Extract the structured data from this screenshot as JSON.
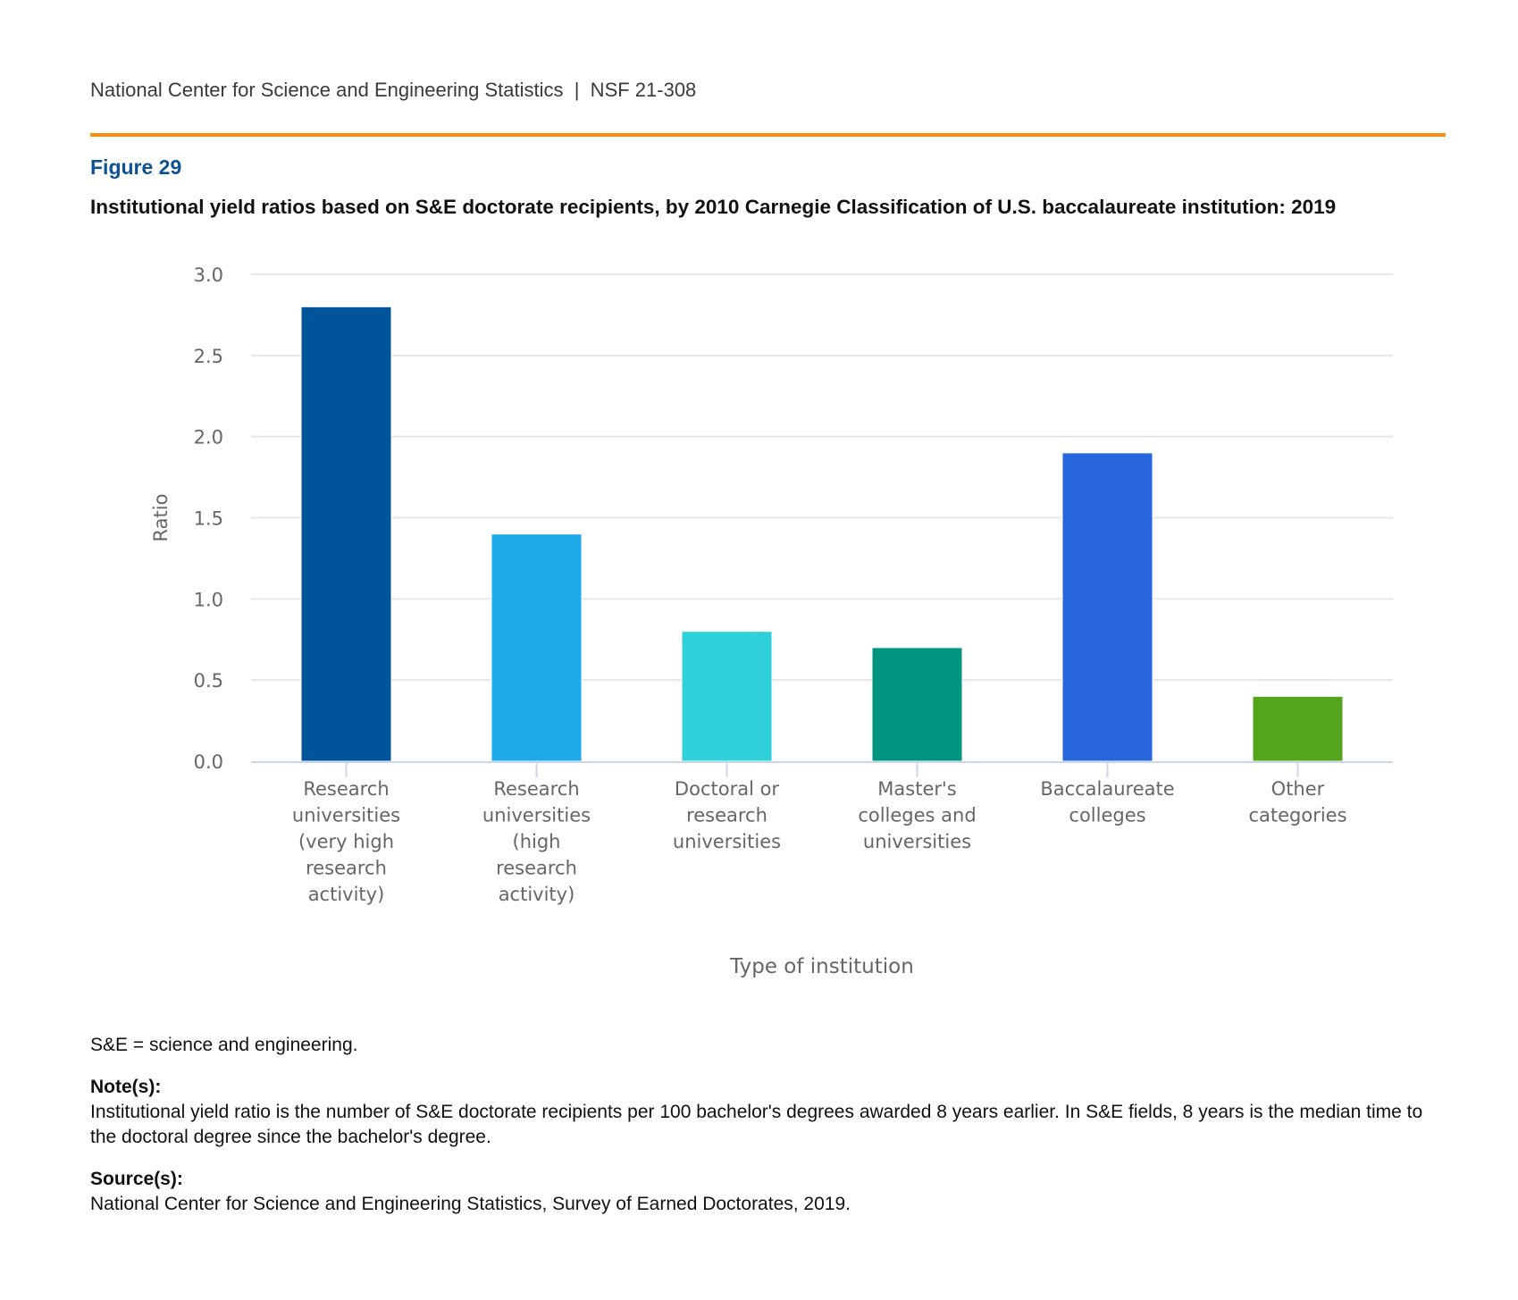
{
  "header": {
    "text": "National Center for Science and Engineering Statistics  |  NSF 21-308",
    "rule_color": "#FF8A0D"
  },
  "figure": {
    "label": "Figure 29",
    "label_color": "#0B5394",
    "title": "Institutional yield ratios based on S&E doctorate recipients, by 2010 Carnegie Classification of U.S. baccalaureate institution: 2019"
  },
  "chart_data": {
    "type": "bar",
    "title": "Institutional yield ratios based on S&E doctorate recipients, by 2010 Carnegie Classification of U.S. baccalaureate institution: 2019",
    "xlabel": "Type of institution",
    "ylabel": "Ratio",
    "ylim": [
      0,
      3.0
    ],
    "yticks": [
      "0.0",
      "0.5",
      "1.0",
      "1.5",
      "2.0",
      "2.5",
      "3.0"
    ],
    "ytick_values": [
      0,
      0.5,
      1.0,
      1.5,
      2.0,
      2.5,
      3.0
    ],
    "grid": true,
    "legend": "none",
    "categories": [
      [
        "Research",
        "universities",
        "(very high",
        "research",
        "activity)"
      ],
      [
        "Research",
        "universities",
        "(high",
        "research",
        "activity)"
      ],
      [
        "Doctoral or",
        "research",
        "universities"
      ],
      [
        "Master's",
        "colleges and",
        "universities"
      ],
      [
        "Baccalaureate",
        "colleges"
      ],
      [
        "Other",
        "categories"
      ]
    ],
    "values": [
      2.8,
      1.4,
      0.8,
      0.7,
      1.9,
      0.4
    ],
    "colors": [
      "#00549A",
      "#1FABE9",
      "#2ED0DA",
      "#009580",
      "#2766DE",
      "#55A51C"
    ],
    "gridline_color": "#E6E6E6",
    "axis_color": "#CCD6EB"
  },
  "footer": {
    "abbreviation": "S&E = science and engineering.",
    "notes_heading": "Note(s):",
    "notes_text": "Institutional yield ratio is the number of S&E doctorate recipients per 100 bachelor's degrees awarded 8 years earlier. In S&E fields, 8 years is the median time to the doctoral degree since the bachelor's degree.",
    "source_heading": "Source(s):",
    "source_text": "National Center for Science and Engineering Statistics, Survey of Earned Doctorates, 2019."
  }
}
